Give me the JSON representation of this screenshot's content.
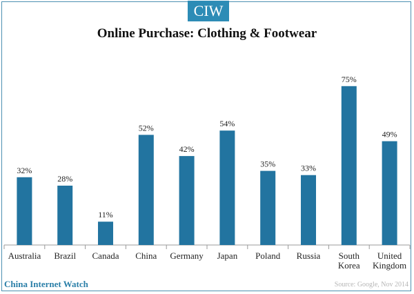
{
  "logo_text": "CIW",
  "footer": {
    "brand": "China Internet Watch",
    "source": "Source: Google, Nov 2014"
  },
  "colors": {
    "bar": "#2274a0",
    "accent": "#2d8cb6",
    "axis": "#999999"
  },
  "chart_data": {
    "type": "bar",
    "title": "Online Purchase: Clothing & Footwear",
    "categories": [
      "Australia",
      "Brazil",
      "Canada",
      "China",
      "Germany",
      "Japan",
      "Poland",
      "Russia",
      "South Korea",
      "United Kingdom"
    ],
    "category_lines": [
      [
        "Australia"
      ],
      [
        "Brazil"
      ],
      [
        "Canada"
      ],
      [
        "China"
      ],
      [
        "Germany"
      ],
      [
        "Japan"
      ],
      [
        "Poland"
      ],
      [
        "Russia"
      ],
      [
        "South",
        "Korea"
      ],
      [
        "United",
        "Kingdom"
      ]
    ],
    "values": [
      32,
      28,
      11,
      52,
      42,
      54,
      35,
      33,
      75,
      49
    ],
    "value_labels": [
      "32%",
      "28%",
      "11%",
      "52%",
      "42%",
      "54%",
      "35%",
      "33%",
      "75%",
      "49%"
    ],
    "ylim": [
      0,
      100
    ],
    "grid": false
  }
}
